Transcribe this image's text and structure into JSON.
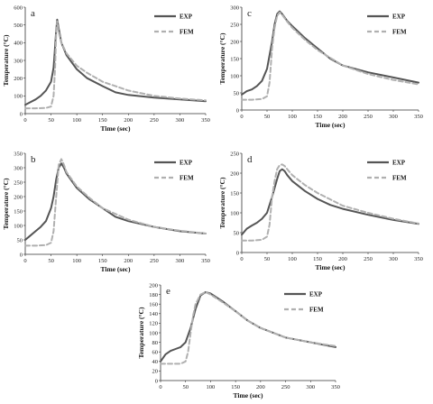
{
  "style": {
    "exp_color": "#555555",
    "fem_color": "#b0b0b0",
    "axis_color": "#333333"
  },
  "chart_data": [
    {
      "type": "line",
      "panel": "a",
      "xlabel": "Time (sec)",
      "ylabel": "Temperature (°C)",
      "xlim": [
        0,
        350
      ],
      "ylim": [
        0,
        600
      ],
      "xticks": [
        0,
        50,
        100,
        150,
        200,
        250,
        300,
        350
      ],
      "yticks": [
        0,
        100,
        200,
        300,
        400,
        500,
        600
      ],
      "grid": false,
      "legend": "top-right",
      "series": [
        {
          "name": "EXP",
          "style": "solid",
          "x": [
            0,
            10,
            20,
            30,
            40,
            50,
            55,
            58,
            60,
            62,
            65,
            70,
            80,
            100,
            120,
            150,
            175,
            200,
            250,
            300,
            350
          ],
          "y": [
            50,
            65,
            80,
            100,
            130,
            180,
            260,
            380,
            470,
            530,
            480,
            400,
            330,
            250,
            200,
            155,
            120,
            105,
            90,
            80,
            70
          ]
        },
        {
          "name": "FEM",
          "style": "dashed",
          "x": [
            0,
            20,
            40,
            50,
            55,
            58,
            60,
            62,
            65,
            70,
            80,
            100,
            120,
            150,
            200,
            250,
            300,
            350
          ],
          "y": [
            30,
            30,
            32,
            40,
            100,
            260,
            450,
            520,
            460,
            400,
            340,
            270,
            230,
            180,
            130,
            100,
            85,
            75
          ]
        }
      ]
    },
    {
      "type": "line",
      "panel": "b",
      "xlabel": "Time (sec)",
      "ylabel": "Temperature (°C)",
      "xlim": [
        0,
        350
      ],
      "ylim": [
        0,
        350
      ],
      "xticks": [
        0,
        50,
        100,
        150,
        200,
        250,
        300,
        350
      ],
      "yticks": [
        0,
        50,
        100,
        150,
        200,
        250,
        300,
        350
      ],
      "grid": false,
      "legend": "top-right",
      "series": [
        {
          "name": "EXP",
          "style": "solid",
          "x": [
            0,
            10,
            20,
            30,
            40,
            50,
            55,
            60,
            65,
            70,
            75,
            80,
            100,
            125,
            150,
            175,
            200,
            250,
            300,
            350
          ],
          "y": [
            50,
            65,
            80,
            95,
            115,
            160,
            200,
            260,
            300,
            315,
            300,
            280,
            230,
            190,
            160,
            130,
            115,
            95,
            80,
            72
          ]
        },
        {
          "name": "FEM",
          "style": "dashed",
          "x": [
            0,
            20,
            40,
            50,
            55,
            60,
            65,
            70,
            75,
            80,
            100,
            125,
            150,
            175,
            200,
            250,
            300,
            350
          ],
          "y": [
            30,
            30,
            32,
            40,
            80,
            200,
            310,
            330,
            310,
            285,
            235,
            195,
            160,
            140,
            120,
            95,
            82,
            72
          ]
        }
      ]
    },
    {
      "type": "line",
      "panel": "c",
      "xlabel": "Time (sec)",
      "ylabel": "Temperature (°C)",
      "xlim": [
        0,
        350
      ],
      "ylim": [
        0,
        300
      ],
      "xticks": [
        0,
        50,
        100,
        150,
        200,
        250,
        300,
        350
      ],
      "yticks": [
        0,
        50,
        100,
        150,
        200,
        250,
        300
      ],
      "grid": false,
      "legend": "top-right",
      "series": [
        {
          "name": "EXP",
          "style": "solid",
          "x": [
            0,
            10,
            20,
            30,
            40,
            50,
            60,
            65,
            70,
            75,
            80,
            90,
            100,
            125,
            150,
            175,
            200,
            250,
            300,
            350
          ],
          "y": [
            45,
            55,
            60,
            70,
            85,
            120,
            200,
            250,
            280,
            288,
            280,
            260,
            245,
            210,
            180,
            150,
            130,
            110,
            95,
            80
          ]
        },
        {
          "name": "FEM",
          "style": "dashed",
          "x": [
            0,
            20,
            40,
            50,
            55,
            60,
            65,
            70,
            75,
            80,
            90,
            100,
            125,
            150,
            200,
            250,
            300,
            350
          ],
          "y": [
            30,
            30,
            32,
            40,
            80,
            180,
            240,
            275,
            285,
            278,
            258,
            240,
            205,
            175,
            130,
            105,
            88,
            75
          ]
        }
      ]
    },
    {
      "type": "line",
      "panel": "d",
      "xlabel": "Time (sec)",
      "ylabel": "Temperature (°C)",
      "xlim": [
        0,
        350
      ],
      "ylim": [
        0,
        250
      ],
      "xticks": [
        0,
        50,
        100,
        150,
        200,
        250,
        300,
        350
      ],
      "yticks": [
        0,
        50,
        100,
        150,
        200,
        250
      ],
      "grid": false,
      "legend": "top-right",
      "series": [
        {
          "name": "EXP",
          "style": "solid",
          "x": [
            0,
            10,
            20,
            30,
            40,
            50,
            60,
            70,
            75,
            80,
            85,
            90,
            100,
            125,
            150,
            175,
            200,
            250,
            300,
            350
          ],
          "y": [
            45,
            60,
            68,
            75,
            85,
            100,
            140,
            185,
            205,
            210,
            205,
            195,
            180,
            155,
            135,
            120,
            110,
            95,
            82,
            72
          ]
        },
        {
          "name": "FEM",
          "style": "dashed",
          "x": [
            0,
            20,
            40,
            50,
            55,
            60,
            65,
            70,
            75,
            80,
            85,
            90,
            100,
            125,
            150,
            200,
            250,
            300,
            350
          ],
          "y": [
            30,
            30,
            32,
            40,
            70,
            140,
            180,
            210,
            220,
            222,
            218,
            210,
            195,
            170,
            150,
            118,
            100,
            85,
            73
          ]
        }
      ]
    },
    {
      "type": "line",
      "panel": "e",
      "xlabel": "Time (sec)",
      "ylabel": "Temperature (°C)",
      "xlim": [
        0,
        350
      ],
      "ylim": [
        0,
        200
      ],
      "xticks": [
        0,
        50,
        100,
        150,
        200,
        250,
        300,
        350
      ],
      "yticks": [
        0,
        20,
        40,
        60,
        80,
        100,
        120,
        140,
        160,
        180,
        200
      ],
      "grid": false,
      "legend": "top-right",
      "series": [
        {
          "name": "EXP",
          "style": "solid",
          "x": [
            0,
            10,
            20,
            30,
            40,
            50,
            60,
            70,
            80,
            90,
            100,
            125,
            150,
            175,
            200,
            250,
            300,
            350
          ],
          "y": [
            40,
            55,
            62,
            66,
            70,
            80,
            110,
            150,
            178,
            185,
            182,
            165,
            145,
            125,
            110,
            90,
            80,
            70
          ]
        },
        {
          "name": "FEM",
          "style": "dashed",
          "x": [
            0,
            20,
            40,
            50,
            55,
            60,
            65,
            70,
            80,
            90,
            100,
            125,
            150,
            175,
            200,
            250,
            300,
            350
          ],
          "y": [
            35,
            35,
            35,
            40,
            60,
            100,
            135,
            160,
            180,
            185,
            180,
            163,
            145,
            125,
            110,
            90,
            80,
            72
          ]
        }
      ]
    }
  ]
}
